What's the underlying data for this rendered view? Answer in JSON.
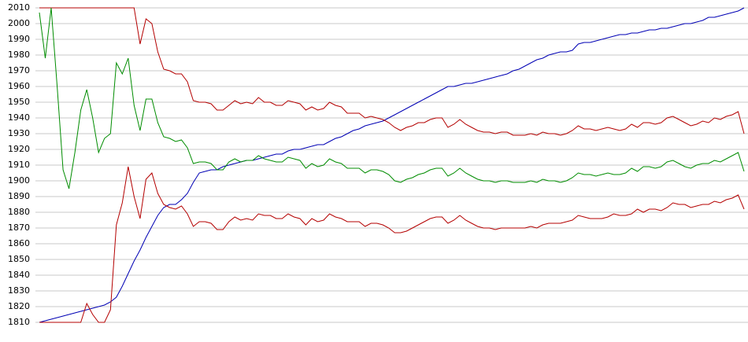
{
  "chart_data": {
    "type": "line",
    "ylim": [
      1810,
      2010
    ],
    "yticks": [
      1810,
      1820,
      1830,
      1840,
      1850,
      1860,
      1870,
      1880,
      1890,
      1900,
      1910,
      1920,
      1930,
      1940,
      1950,
      1960,
      1970,
      1980,
      1990,
      2000,
      2010
    ],
    "grid": true,
    "series": [
      {
        "color": "#0000b4",
        "values": [
          1810,
          1811,
          1812,
          1813,
          1814,
          1815,
          1816,
          1817,
          1818,
          1819,
          1820,
          1821,
          1823,
          1826,
          1833,
          1841,
          1849,
          1856,
          1864,
          1871,
          1878,
          1883,
          1885,
          1885,
          1888,
          1892,
          1899,
          1905,
          1906,
          1907,
          1907,
          1909,
          1910,
          1911,
          1912,
          1913,
          1913,
          1914,
          1915,
          1916,
          1917,
          1917,
          1919,
          1920,
          1920,
          1921,
          1922,
          1923,
          1923,
          1925,
          1927,
          1928,
          1930,
          1932,
          1933,
          1935,
          1936,
          1937,
          1938,
          1940,
          1942,
          1944,
          1946,
          1948,
          1950,
          1952,
          1954,
          1956,
          1958,
          1960,
          1960,
          1961,
          1962,
          1962,
          1963,
          1964,
          1965,
          1966,
          1967,
          1968,
          1970,
          1971,
          1973,
          1975,
          1977,
          1978,
          1980,
          1981,
          1982,
          1982,
          1983,
          1987,
          1988,
          1988,
          1989,
          1990,
          1991,
          1992,
          1993,
          1993,
          1994,
          1994,
          1995,
          1996,
          1996,
          1997,
          1997,
          1998,
          1999,
          2000,
          2000,
          2001,
          2002,
          2004,
          2004,
          2005,
          2006,
          2007,
          2008,
          2010
        ]
      },
      {
        "color": "#b40000",
        "values": [
          2010,
          2010,
          2010,
          2010,
          2010,
          2010,
          2010,
          2010,
          2010,
          2010,
          2010,
          2010,
          2010,
          2010,
          2010,
          2010,
          2010,
          1987,
          2003,
          2000,
          1982,
          1971,
          1970,
          1968,
          1968,
          1963,
          1951,
          1950,
          1950,
          1949,
          1945,
          1945,
          1948,
          1951,
          1949,
          1950,
          1949,
          1953,
          1950,
          1950,
          1948,
          1948,
          1951,
          1950,
          1949,
          1945,
          1947,
          1945,
          1946,
          1950,
          1948,
          1947,
          1943,
          1943,
          1943,
          1940,
          1941,
          1940,
          1939,
          1937,
          1934,
          1932,
          1934,
          1935,
          1937,
          1937,
          1939,
          1940,
          1940,
          1934,
          1936,
          1939,
          1936,
          1934,
          1932,
          1931,
          1931,
          1930,
          1931,
          1931,
          1929,
          1929,
          1929,
          1930,
          1929,
          1931,
          1930,
          1930,
          1929,
          1930,
          1932,
          1935,
          1933,
          1933,
          1932,
          1933,
          1934,
          1933,
          1932,
          1933,
          1936,
          1934,
          1937,
          1937,
          1936,
          1937,
          1940,
          1941,
          1939,
          1937,
          1935,
          1936,
          1938,
          1937,
          1940,
          1939,
          1941,
          1942,
          1944,
          1930
        ]
      },
      {
        "color": "#008c00",
        "values": [
          2007,
          1978,
          2010,
          1960,
          1907,
          1895,
          1918,
          1945,
          1958,
          1940,
          1918,
          1927,
          1930,
          1975,
          1968,
          1978,
          1948,
          1932,
          1952,
          1952,
          1937,
          1928,
          1927,
          1925,
          1926,
          1921,
          1911,
          1912,
          1912,
          1911,
          1907,
          1907,
          1912,
          1914,
          1912,
          1913,
          1913,
          1916,
          1914,
          1913,
          1912,
          1912,
          1915,
          1914,
          1913,
          1908,
          1911,
          1909,
          1910,
          1914,
          1912,
          1911,
          1908,
          1908,
          1908,
          1905,
          1907,
          1907,
          1906,
          1904,
          1900,
          1899,
          1901,
          1902,
          1904,
          1905,
          1907,
          1908,
          1908,
          1903,
          1905,
          1908,
          1905,
          1903,
          1901,
          1900,
          1900,
          1899,
          1900,
          1900,
          1899,
          1899,
          1899,
          1900,
          1899,
          1901,
          1900,
          1900,
          1899,
          1900,
          1902,
          1905,
          1904,
          1904,
          1903,
          1904,
          1905,
          1904,
          1904,
          1905,
          1908,
          1906,
          1909,
          1909,
          1908,
          1909,
          1912,
          1913,
          1911,
          1909,
          1908,
          1910,
          1911,
          1911,
          1913,
          1912,
          1914,
          1916,
          1918,
          1906
        ]
      },
      {
        "color": "#b40000",
        "values": [
          1810,
          1810,
          1810,
          1810,
          1810,
          1810,
          1810,
          1810,
          1822,
          1815,
          1810,
          1810,
          1818,
          1872,
          1886,
          1909,
          1890,
          1876,
          1901,
          1905,
          1892,
          1885,
          1883,
          1882,
          1884,
          1879,
          1871,
          1874,
          1874,
          1873,
          1869,
          1869,
          1874,
          1877,
          1875,
          1876,
          1875,
          1879,
          1878,
          1878,
          1876,
          1876,
          1879,
          1877,
          1876,
          1872,
          1876,
          1874,
          1875,
          1879,
          1877,
          1876,
          1874,
          1874,
          1874,
          1871,
          1873,
          1873,
          1872,
          1870,
          1867,
          1867,
          1868,
          1870,
          1872,
          1874,
          1876,
          1877,
          1877,
          1873,
          1875,
          1878,
          1875,
          1873,
          1871,
          1870,
          1870,
          1869,
          1870,
          1870,
          1870,
          1870,
          1870,
          1871,
          1870,
          1872,
          1873,
          1873,
          1873,
          1874,
          1875,
          1878,
          1877,
          1876,
          1876,
          1876,
          1877,
          1879,
          1878,
          1878,
          1879,
          1882,
          1880,
          1882,
          1882,
          1881,
          1883,
          1886,
          1885,
          1885,
          1883,
          1884,
          1885,
          1885,
          1887,
          1886,
          1888,
          1889,
          1891,
          1882
        ]
      }
    ]
  }
}
